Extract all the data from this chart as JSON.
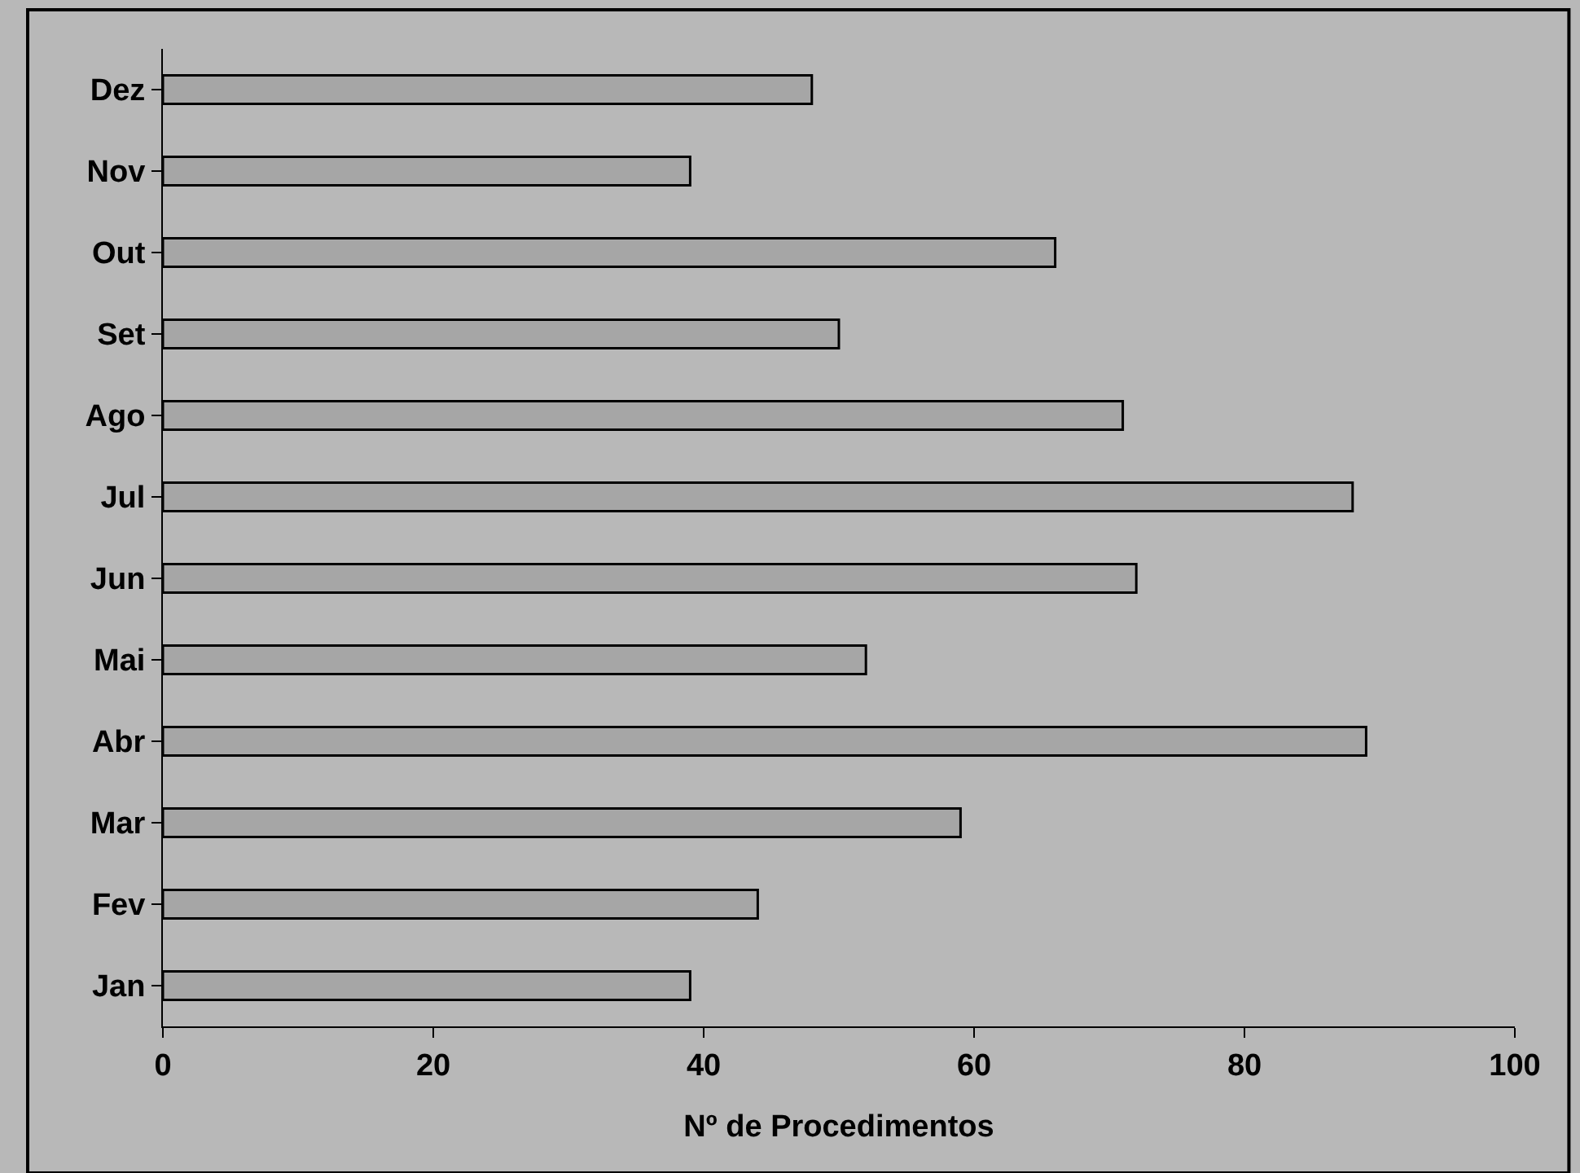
{
  "chart_data": {
    "type": "bar",
    "orientation": "horizontal",
    "xlabel": "Nº de Procedimentos",
    "categories": [
      "Dez",
      "Nov",
      "Out",
      "Set",
      "Ago",
      "Jul",
      "Jun",
      "Mai",
      "Abr",
      "Mar",
      "Fev",
      "Jan"
    ],
    "values": [
      48,
      39,
      66,
      50,
      71,
      88,
      72,
      52,
      89,
      59,
      44,
      39
    ],
    "color": "#a6a6a6",
    "xlim": [
      0,
      100
    ],
    "xticks": [
      0,
      20,
      40,
      60,
      80,
      100
    ],
    "grid": false
  }
}
